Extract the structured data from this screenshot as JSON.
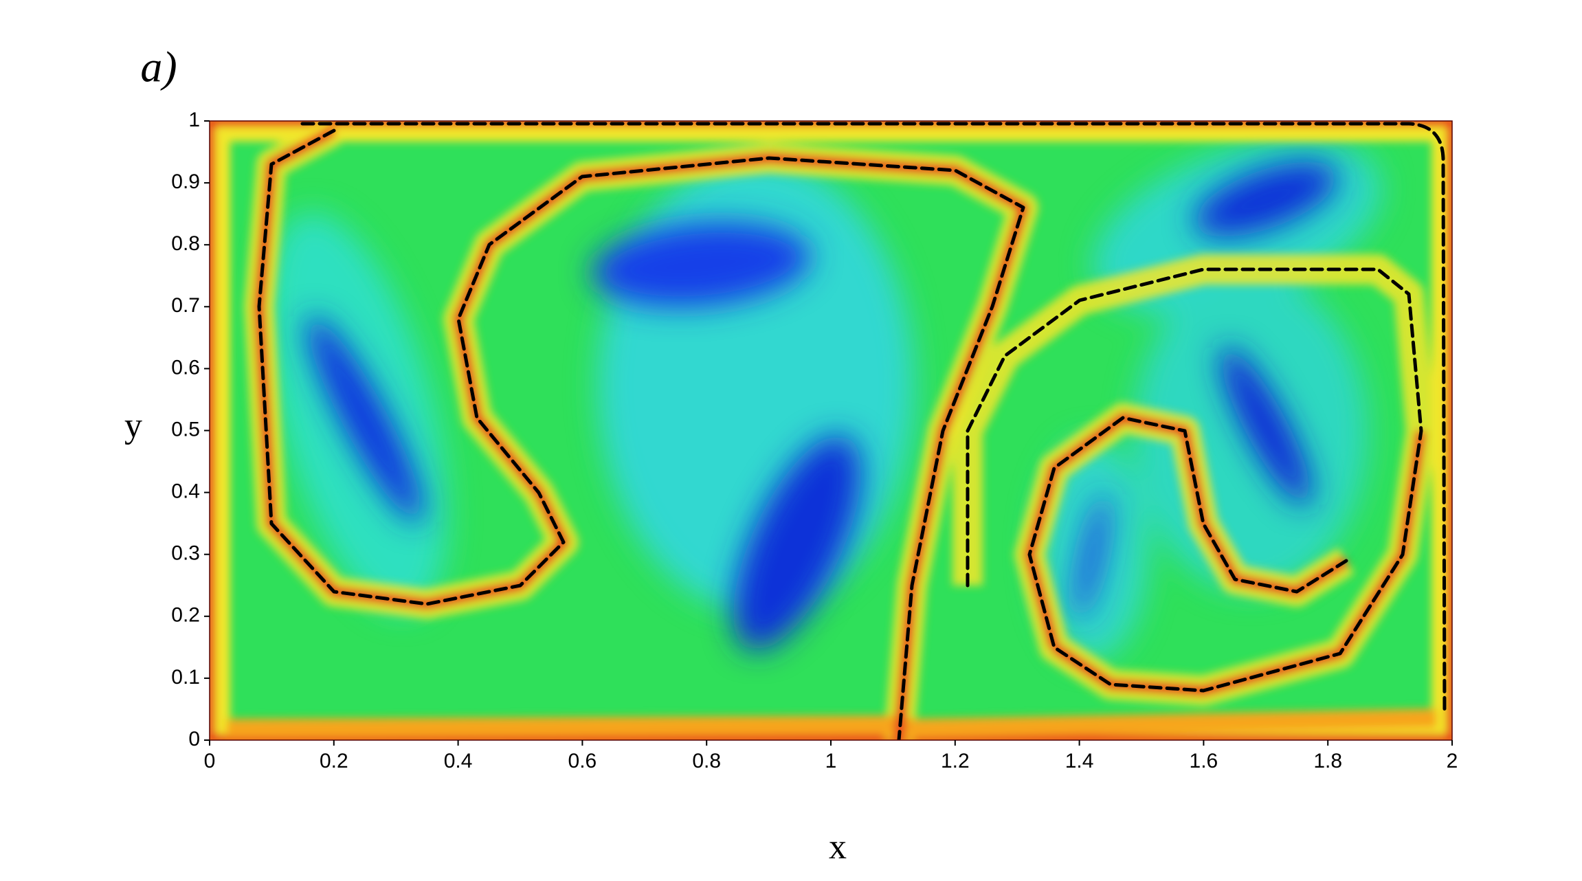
{
  "chart_data": {
    "type": "heatmap",
    "title": "a)",
    "xlabel": "x",
    "ylabel": "y",
    "xlim": [
      0,
      2
    ],
    "ylim": [
      0,
      1
    ],
    "xticks": [
      0,
      0.2,
      0.4,
      0.6,
      0.8,
      1,
      1.2,
      1.4,
      1.6,
      1.8,
      2
    ],
    "yticks": [
      0,
      0.1,
      0.2,
      0.3,
      0.4,
      0.5,
      0.6,
      0.7,
      0.8,
      0.9,
      1
    ]
  }
}
